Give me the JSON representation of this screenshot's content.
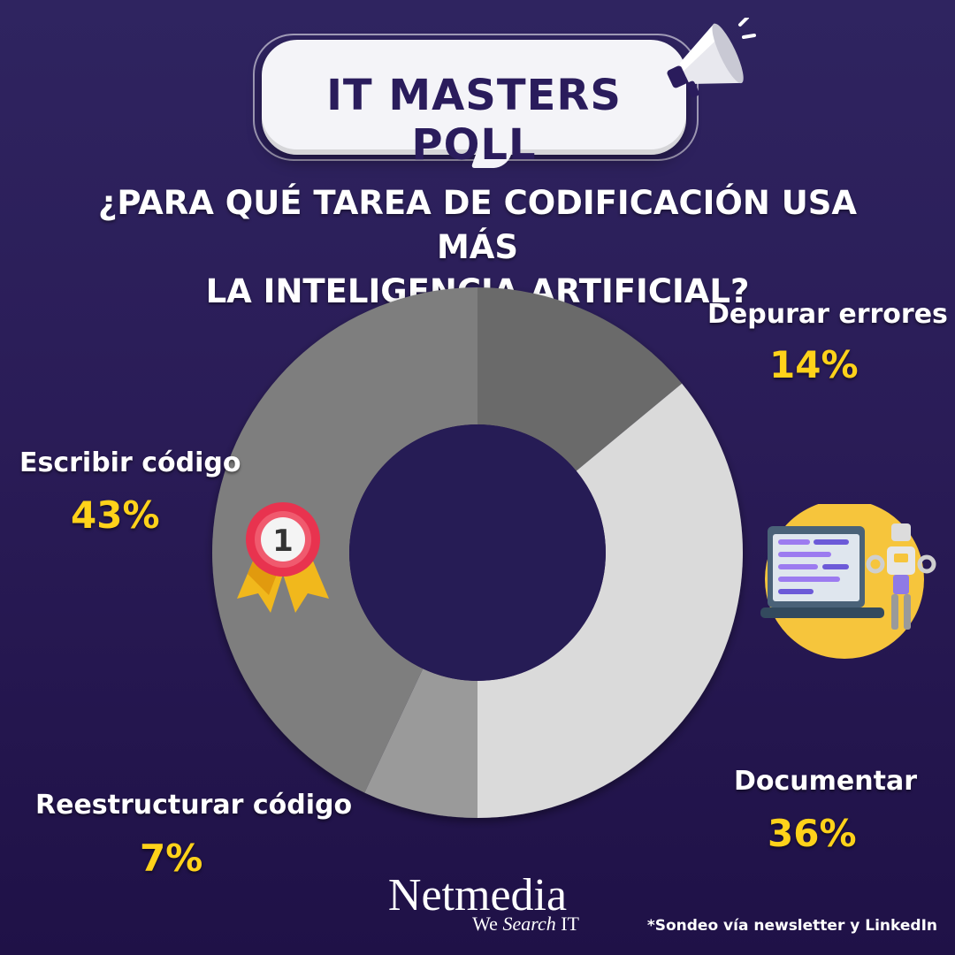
{
  "header": {
    "poll_title": "IT MASTERS POLL",
    "question_line1": "¿PARA QUÉ TAREA DE CODIFICACIÓN USA MÁS",
    "question_line2": "LA INTELIGENCIA ARTIFICIAL?"
  },
  "icons": {
    "megaphone": "megaphone-icon",
    "medal": "first-place-medal-icon",
    "medal_number": "1",
    "robot": "robot-coding-icon"
  },
  "colors": {
    "background": "#2a1c57",
    "title_text": "#2a1c5c",
    "percentage": "#ffd21a"
  },
  "chart_data": {
    "type": "pie",
    "donut": true,
    "categories": [
      "Depurar errores",
      "Documentar",
      "Reestructurar código",
      "Escribir código"
    ],
    "values": [
      14,
      36,
      7,
      43
    ],
    "labels": [
      "14%",
      "36%",
      "7%",
      "43%"
    ],
    "colors": [
      "#6b6b6b",
      "#dadada",
      "#9a9a9a",
      "#7e7e7e"
    ]
  },
  "footer": {
    "brand": "Netmedia",
    "tagline_prefix": "We ",
    "tagline_italic": "Search",
    "tagline_suffix": " IT",
    "footnote": "*Sondeo vía newsletter y LinkedIn"
  }
}
